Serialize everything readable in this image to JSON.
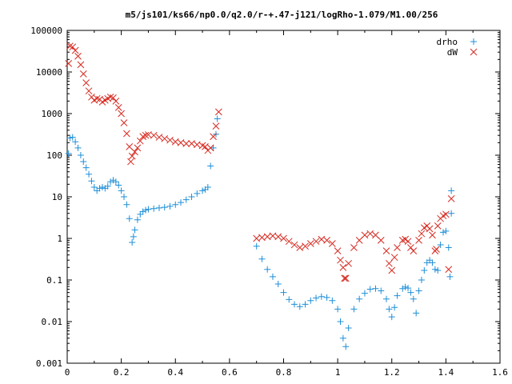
{
  "chart_data": {
    "type": "scatter",
    "title": "m5/js101/ks66/np0.0/q2.0/r-+.47-j121/logRho-1.079/M1.00/256",
    "xlabel": "",
    "ylabel": "",
    "xlim": [
      0,
      1.6
    ],
    "ylim": [
      0.001,
      100000
    ],
    "yscale": "log",
    "x_ticks": [
      "0",
      "0.2",
      "0.4",
      "0.6",
      "0.8",
      "1",
      "1.2",
      "1.4",
      "1.6"
    ],
    "y_ticks": [
      "0.001",
      "0.01",
      "0.1",
      "1",
      "10",
      "100",
      "1000",
      "10000",
      "100000"
    ],
    "grid": false,
    "legend_position": "top-right",
    "series": [
      {
        "name": "drho",
        "marker": "+",
        "color": "#1f8fd8",
        "points": [
          [
            0.005,
            110
          ],
          [
            0.01,
            260
          ],
          [
            0.02,
            270
          ],
          [
            0.03,
            210
          ],
          [
            0.04,
            150
          ],
          [
            0.05,
            100
          ],
          [
            0.06,
            70
          ],
          [
            0.07,
            50
          ],
          [
            0.08,
            35
          ],
          [
            0.09,
            24
          ],
          [
            0.1,
            17
          ],
          [
            0.11,
            14
          ],
          [
            0.12,
            16
          ],
          [
            0.13,
            17
          ],
          [
            0.14,
            16
          ],
          [
            0.15,
            18
          ],
          [
            0.16,
            23
          ],
          [
            0.17,
            25
          ],
          [
            0.18,
            23
          ],
          [
            0.19,
            19
          ],
          [
            0.2,
            14
          ],
          [
            0.21,
            10
          ],
          [
            0.22,
            6.5
          ],
          [
            0.23,
            3
          ],
          [
            0.24,
            0.8
          ],
          [
            0.245,
            1.1
          ],
          [
            0.25,
            1.6
          ],
          [
            0.26,
            2.8
          ],
          [
            0.27,
            3.8
          ],
          [
            0.28,
            4.4
          ],
          [
            0.29,
            4.8
          ],
          [
            0.3,
            5
          ],
          [
            0.32,
            5.2
          ],
          [
            0.34,
            5.4
          ],
          [
            0.36,
            5.6
          ],
          [
            0.38,
            5.9
          ],
          [
            0.4,
            6.5
          ],
          [
            0.42,
            7.3
          ],
          [
            0.44,
            8.5
          ],
          [
            0.46,
            10
          ],
          [
            0.48,
            12
          ],
          [
            0.5,
            14
          ],
          [
            0.51,
            15
          ],
          [
            0.52,
            17
          ],
          [
            0.53,
            55
          ],
          [
            0.54,
            150
          ],
          [
            0.55,
            320
          ],
          [
            0.555,
            750
          ],
          [
            0.7,
            0.65
          ],
          [
            0.72,
            0.32
          ],
          [
            0.74,
            0.18
          ],
          [
            0.76,
            0.12
          ],
          [
            0.78,
            0.08
          ],
          [
            0.8,
            0.05
          ],
          [
            0.82,
            0.034
          ],
          [
            0.84,
            0.026
          ],
          [
            0.86,
            0.023
          ],
          [
            0.88,
            0.026
          ],
          [
            0.9,
            0.032
          ],
          [
            0.92,
            0.037
          ],
          [
            0.94,
            0.04
          ],
          [
            0.96,
            0.038
          ],
          [
            0.98,
            0.032
          ],
          [
            1,
            0.02
          ],
          [
            1.01,
            0.01
          ],
          [
            1.02,
            0.004
          ],
          [
            1.03,
            0.0025
          ],
          [
            1.04,
            0.007
          ],
          [
            1.06,
            0.02
          ],
          [
            1.08,
            0.035
          ],
          [
            1.1,
            0.048
          ],
          [
            1.12,
            0.06
          ],
          [
            1.14,
            0.062
          ],
          [
            1.16,
            0.055
          ],
          [
            1.18,
            0.035
          ],
          [
            1.19,
            0.02
          ],
          [
            1.2,
            0.013
          ],
          [
            1.21,
            0.022
          ],
          [
            1.22,
            0.042
          ],
          [
            1.24,
            0.062
          ],
          [
            1.25,
            0.068
          ],
          [
            1.26,
            0.064
          ],
          [
            1.27,
            0.05
          ],
          [
            1.28,
            0.035
          ],
          [
            1.29,
            0.016
          ],
          [
            1.3,
            0.055
          ],
          [
            1.31,
            0.1
          ],
          [
            1.32,
            0.17
          ],
          [
            1.33,
            0.26
          ],
          [
            1.34,
            0.3
          ],
          [
            1.35,
            0.26
          ],
          [
            1.36,
            0.18
          ],
          [
            1.37,
            0.17
          ],
          [
            1.38,
            0.7
          ],
          [
            1.39,
            1.4
          ],
          [
            1.4,
            1.5
          ],
          [
            1.41,
            0.6
          ],
          [
            1.415,
            0.12
          ],
          [
            1.42,
            4
          ],
          [
            1.42,
            14
          ]
        ]
      },
      {
        "name": "dW",
        "marker": "x",
        "color": "#d62a20",
        "points": [
          [
            0.005,
            16000
          ],
          [
            0.01,
            42000
          ],
          [
            0.02,
            40000
          ],
          [
            0.03,
            33000
          ],
          [
            0.04,
            24000
          ],
          [
            0.05,
            15000
          ],
          [
            0.06,
            9000
          ],
          [
            0.07,
            5500
          ],
          [
            0.08,
            3500
          ],
          [
            0.09,
            2500
          ],
          [
            0.1,
            2100
          ],
          [
            0.11,
            2300
          ],
          [
            0.12,
            2200
          ],
          [
            0.13,
            1900
          ],
          [
            0.14,
            2100
          ],
          [
            0.15,
            2300
          ],
          [
            0.16,
            2500
          ],
          [
            0.17,
            2400
          ],
          [
            0.18,
            2000
          ],
          [
            0.19,
            1400
          ],
          [
            0.2,
            1000
          ],
          [
            0.21,
            600
          ],
          [
            0.22,
            330
          ],
          [
            0.23,
            160
          ],
          [
            0.235,
            70
          ],
          [
            0.24,
            95
          ],
          [
            0.25,
            120
          ],
          [
            0.26,
            150
          ],
          [
            0.27,
            220
          ],
          [
            0.28,
            280
          ],
          [
            0.29,
            300
          ],
          [
            0.3,
            310
          ],
          [
            0.32,
            300
          ],
          [
            0.34,
            270
          ],
          [
            0.36,
            250
          ],
          [
            0.38,
            230
          ],
          [
            0.4,
            210
          ],
          [
            0.42,
            200
          ],
          [
            0.44,
            190
          ],
          [
            0.46,
            190
          ],
          [
            0.48,
            180
          ],
          [
            0.5,
            170
          ],
          [
            0.51,
            160
          ],
          [
            0.52,
            130
          ],
          [
            0.53,
            150
          ],
          [
            0.54,
            280
          ],
          [
            0.55,
            500
          ],
          [
            0.56,
            1100
          ],
          [
            0.7,
            1
          ],
          [
            0.72,
            1.05
          ],
          [
            0.74,
            1.1
          ],
          [
            0.76,
            1.15
          ],
          [
            0.78,
            1.1
          ],
          [
            0.8,
            1
          ],
          [
            0.82,
            0.85
          ],
          [
            0.84,
            0.7
          ],
          [
            0.86,
            0.6
          ],
          [
            0.88,
            0.65
          ],
          [
            0.9,
            0.75
          ],
          [
            0.92,
            0.85
          ],
          [
            0.94,
            0.95
          ],
          [
            0.96,
            0.9
          ],
          [
            0.98,
            0.75
          ],
          [
            1,
            0.5
          ],
          [
            1.01,
            0.3
          ],
          [
            1.02,
            0.2
          ],
          [
            1.025,
            0.11
          ],
          [
            1.03,
            0.11
          ],
          [
            1.04,
            0.25
          ],
          [
            1.06,
            0.6
          ],
          [
            1.08,
            0.9
          ],
          [
            1.1,
            1.2
          ],
          [
            1.12,
            1.3
          ],
          [
            1.14,
            1.2
          ],
          [
            1.16,
            0.9
          ],
          [
            1.18,
            0.5
          ],
          [
            1.19,
            0.25
          ],
          [
            1.2,
            0.17
          ],
          [
            1.21,
            0.35
          ],
          [
            1.22,
            0.6
          ],
          [
            1.24,
            0.9
          ],
          [
            1.25,
            0.95
          ],
          [
            1.26,
            0.85
          ],
          [
            1.27,
            0.6
          ],
          [
            1.28,
            0.5
          ],
          [
            1.3,
            0.9
          ],
          [
            1.31,
            1.3
          ],
          [
            1.32,
            1.8
          ],
          [
            1.33,
            2
          ],
          [
            1.34,
            1.7
          ],
          [
            1.35,
            1.2
          ],
          [
            1.36,
            0.5
          ],
          [
            1.365,
            0.55
          ],
          [
            1.37,
            2
          ],
          [
            1.38,
            3
          ],
          [
            1.39,
            3.5
          ],
          [
            1.4,
            3.8
          ],
          [
            1.41,
            0.18
          ],
          [
            1.42,
            9
          ]
        ]
      }
    ]
  }
}
